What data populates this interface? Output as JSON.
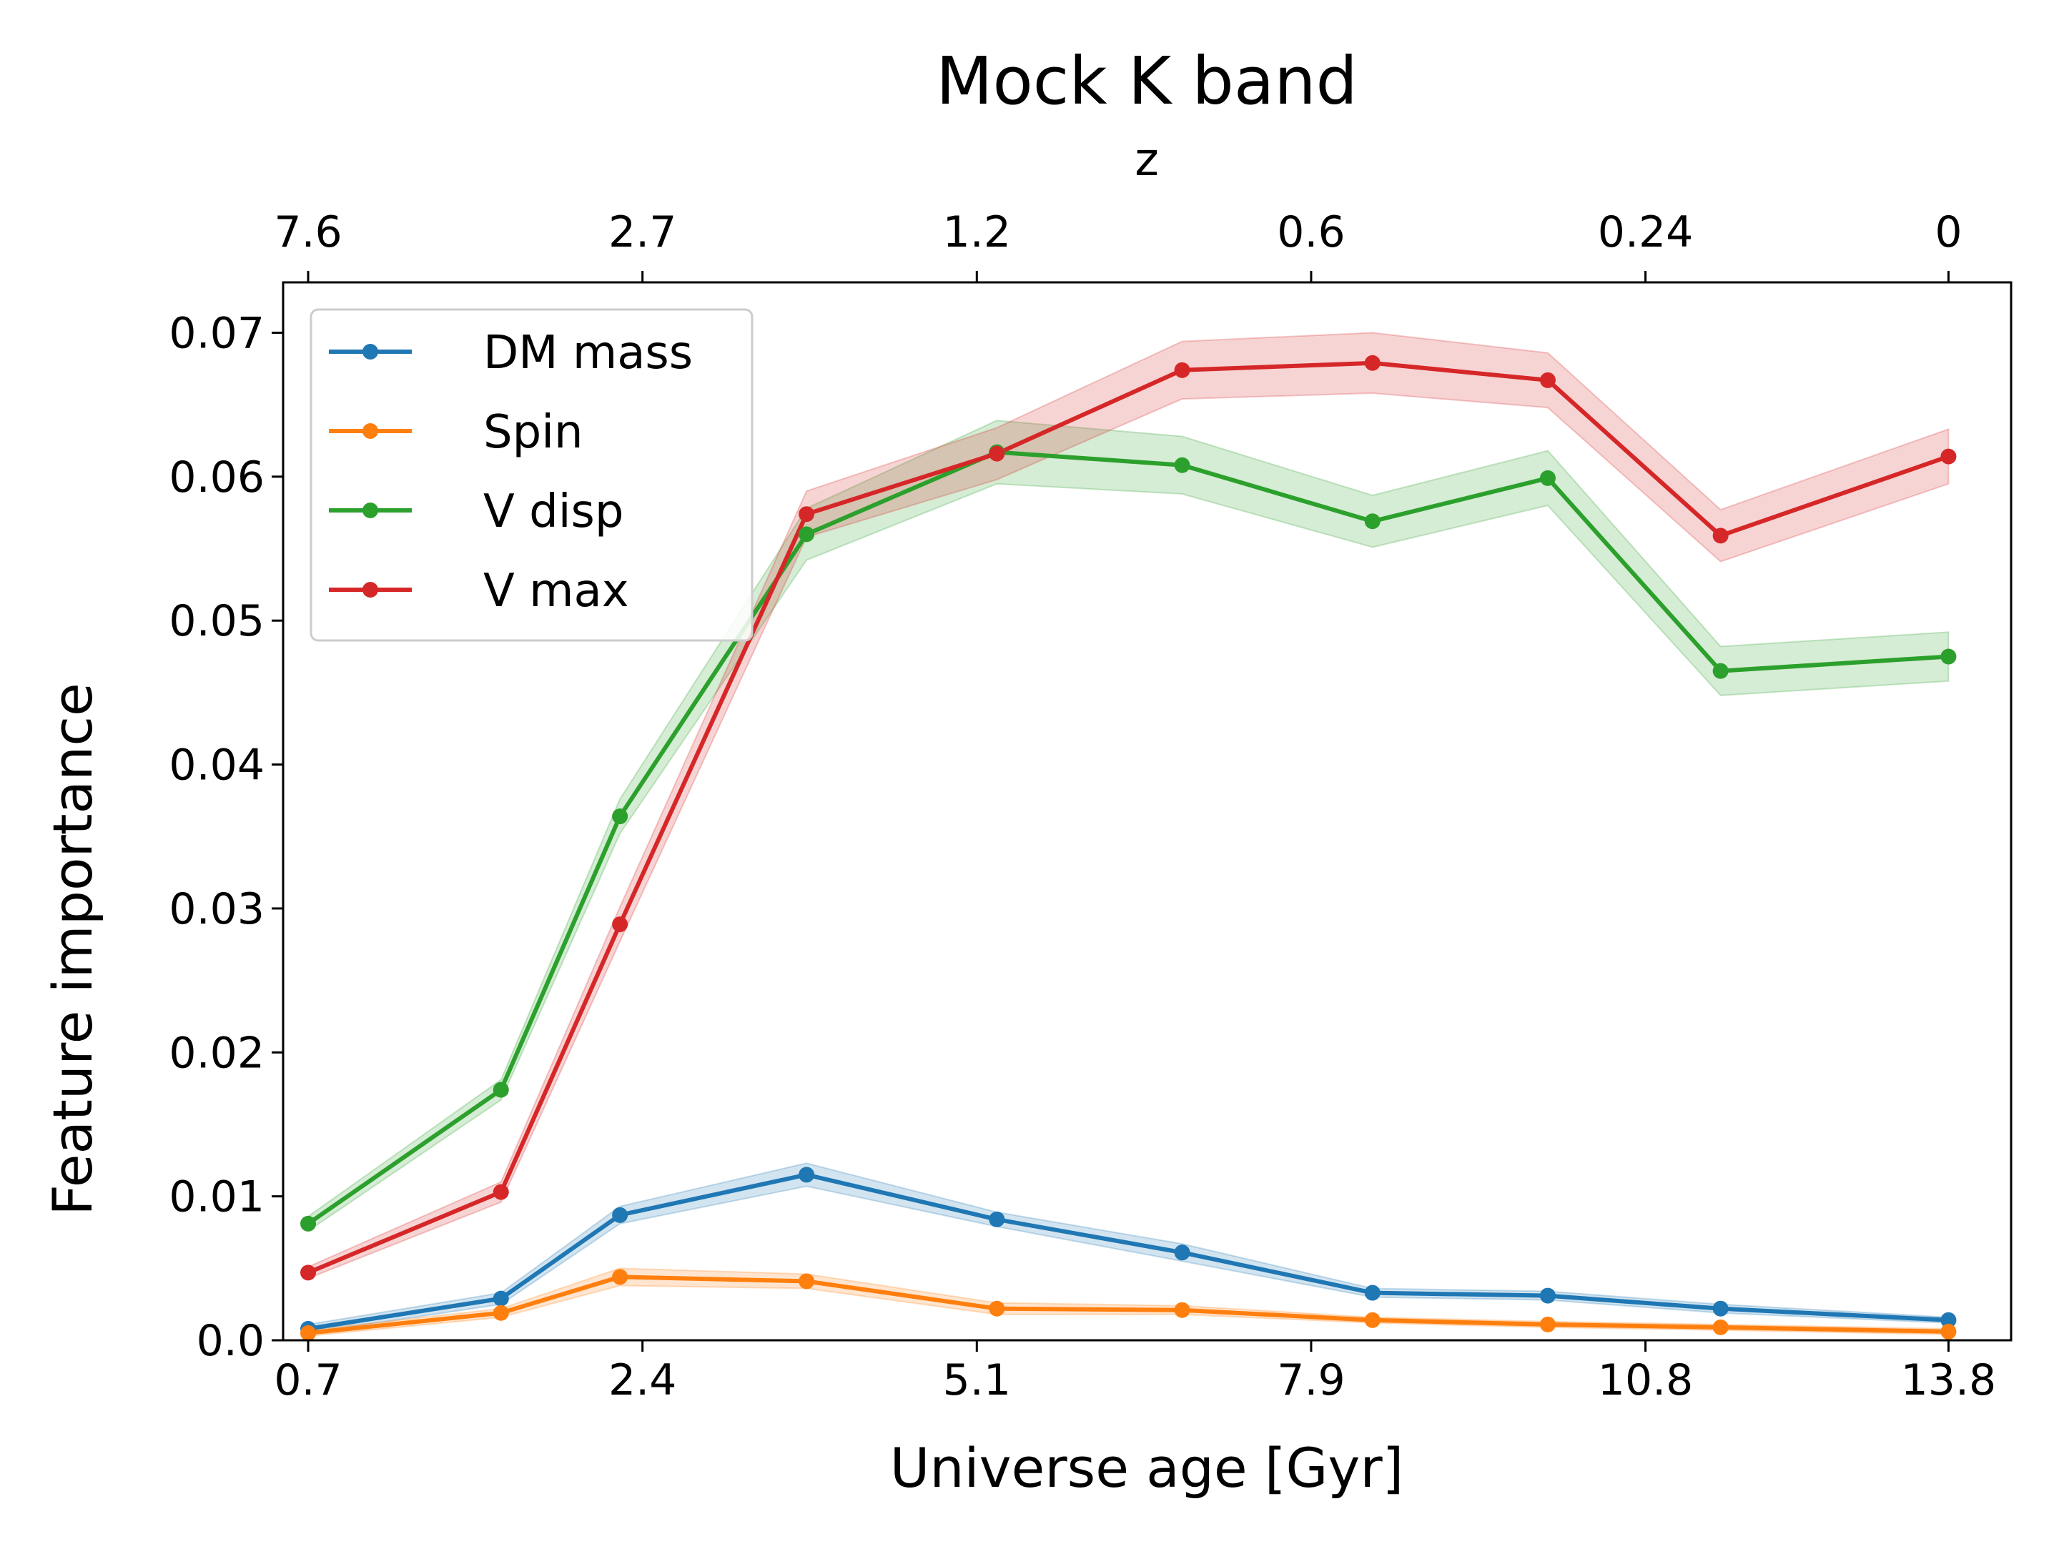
{
  "chart_data": {
    "type": "line",
    "title": "Mock K band",
    "xlabel": "Universe age [Gyr]",
    "ylabel": "Feature importance",
    "top_xlabel": "z",
    "xlim": [
      0.5,
      14.3
    ],
    "ylim": [
      0.0,
      0.0735
    ],
    "x": [
      0.7,
      2.24,
      3.19,
      4.68,
      6.2,
      7.68,
      9.2,
      10.6,
      11.98,
      13.8
    ],
    "x_ticks": [
      {
        "value": 0.7,
        "label": "0.7"
      },
      {
        "value": 3.37,
        "label": "2.4"
      },
      {
        "value": 6.04,
        "label": "5.1"
      },
      {
        "value": 8.71,
        "label": "7.9"
      },
      {
        "value": 11.38,
        "label": "10.8"
      },
      {
        "value": 13.8,
        "label": "13.8"
      }
    ],
    "top_ticks": [
      {
        "value": 0.7,
        "label": "7.6"
      },
      {
        "value": 3.37,
        "label": "2.7"
      },
      {
        "value": 6.04,
        "label": "1.2"
      },
      {
        "value": 8.71,
        "label": "0.6"
      },
      {
        "value": 11.38,
        "label": "0.24"
      },
      {
        "value": 13.8,
        "label": "0"
      }
    ],
    "y_ticks": [
      {
        "value": 0.0,
        "label": "0.0"
      },
      {
        "value": 0.01,
        "label": "0.01"
      },
      {
        "value": 0.02,
        "label": "0.02"
      },
      {
        "value": 0.03,
        "label": "0.03"
      },
      {
        "value": 0.04,
        "label": "0.04"
      },
      {
        "value": 0.05,
        "label": "0.05"
      },
      {
        "value": 0.06,
        "label": "0.06"
      },
      {
        "value": 0.07,
        "label": "0.07"
      }
    ],
    "legend_position": "top-left",
    "series": [
      {
        "name": "DM mass",
        "color": "#1f77b4",
        "values": [
          0.0008,
          0.0029,
          0.0087,
          0.0115,
          0.0084,
          0.0061,
          0.0033,
          0.0031,
          0.0022,
          0.0014
        ],
        "band": [
          0.0003,
          0.0004,
          0.0006,
          0.0008,
          0.0005,
          0.0006,
          0.0003,
          0.0003,
          0.0003,
          0.0002
        ]
      },
      {
        "name": "Spin",
        "color": "#ff7f0e",
        "values": [
          0.0005,
          0.0019,
          0.0044,
          0.0041,
          0.0022,
          0.0021,
          0.0014,
          0.0011,
          0.0009,
          0.0006
        ],
        "band": [
          0.0002,
          0.0003,
          0.0006,
          0.0005,
          0.0004,
          0.0003,
          0.0002,
          0.0002,
          0.0002,
          0.0002
        ]
      },
      {
        "name": "V disp",
        "color": "#2ca02c",
        "values": [
          0.0081,
          0.0174,
          0.0364,
          0.056,
          0.0617,
          0.0608,
          0.0569,
          0.0599,
          0.0465,
          0.0475
        ],
        "band": [
          0.0005,
          0.0007,
          0.0012,
          0.0018,
          0.0022,
          0.002,
          0.0018,
          0.0019,
          0.0017,
          0.0017
        ]
      },
      {
        "name": "V max",
        "color": "#d62728",
        "values": [
          0.0047,
          0.0103,
          0.0289,
          0.0574,
          0.0616,
          0.0674,
          0.0679,
          0.0667,
          0.0559,
          0.0614
        ],
        "band": [
          0.0004,
          0.0007,
          0.0012,
          0.0016,
          0.0018,
          0.002,
          0.0021,
          0.0019,
          0.0018,
          0.0019
        ]
      }
    ]
  }
}
